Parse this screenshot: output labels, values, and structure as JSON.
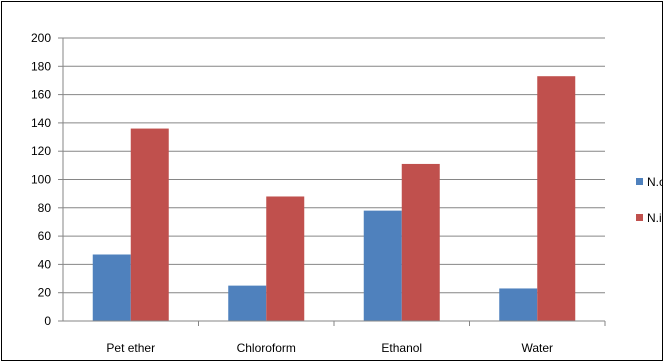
{
  "chart_data": {
    "type": "bar",
    "categories": [
      "Pet ether",
      "Chloroform",
      "Ethanol",
      "Water"
    ],
    "series": [
      {
        "name": "N.c",
        "color": "#4f81bd",
        "values": [
          47,
          25,
          78,
          23
        ]
      },
      {
        "name": "N.i",
        "color": "#c0504d",
        "values": [
          136,
          88,
          111,
          173
        ]
      }
    ],
    "ylim": [
      0,
      200
    ],
    "yticks": [
      0,
      20,
      40,
      60,
      80,
      100,
      120,
      140,
      160,
      180,
      200
    ],
    "grid": true,
    "legend": "right",
    "title": "",
    "xlabel": "",
    "ylabel": ""
  }
}
